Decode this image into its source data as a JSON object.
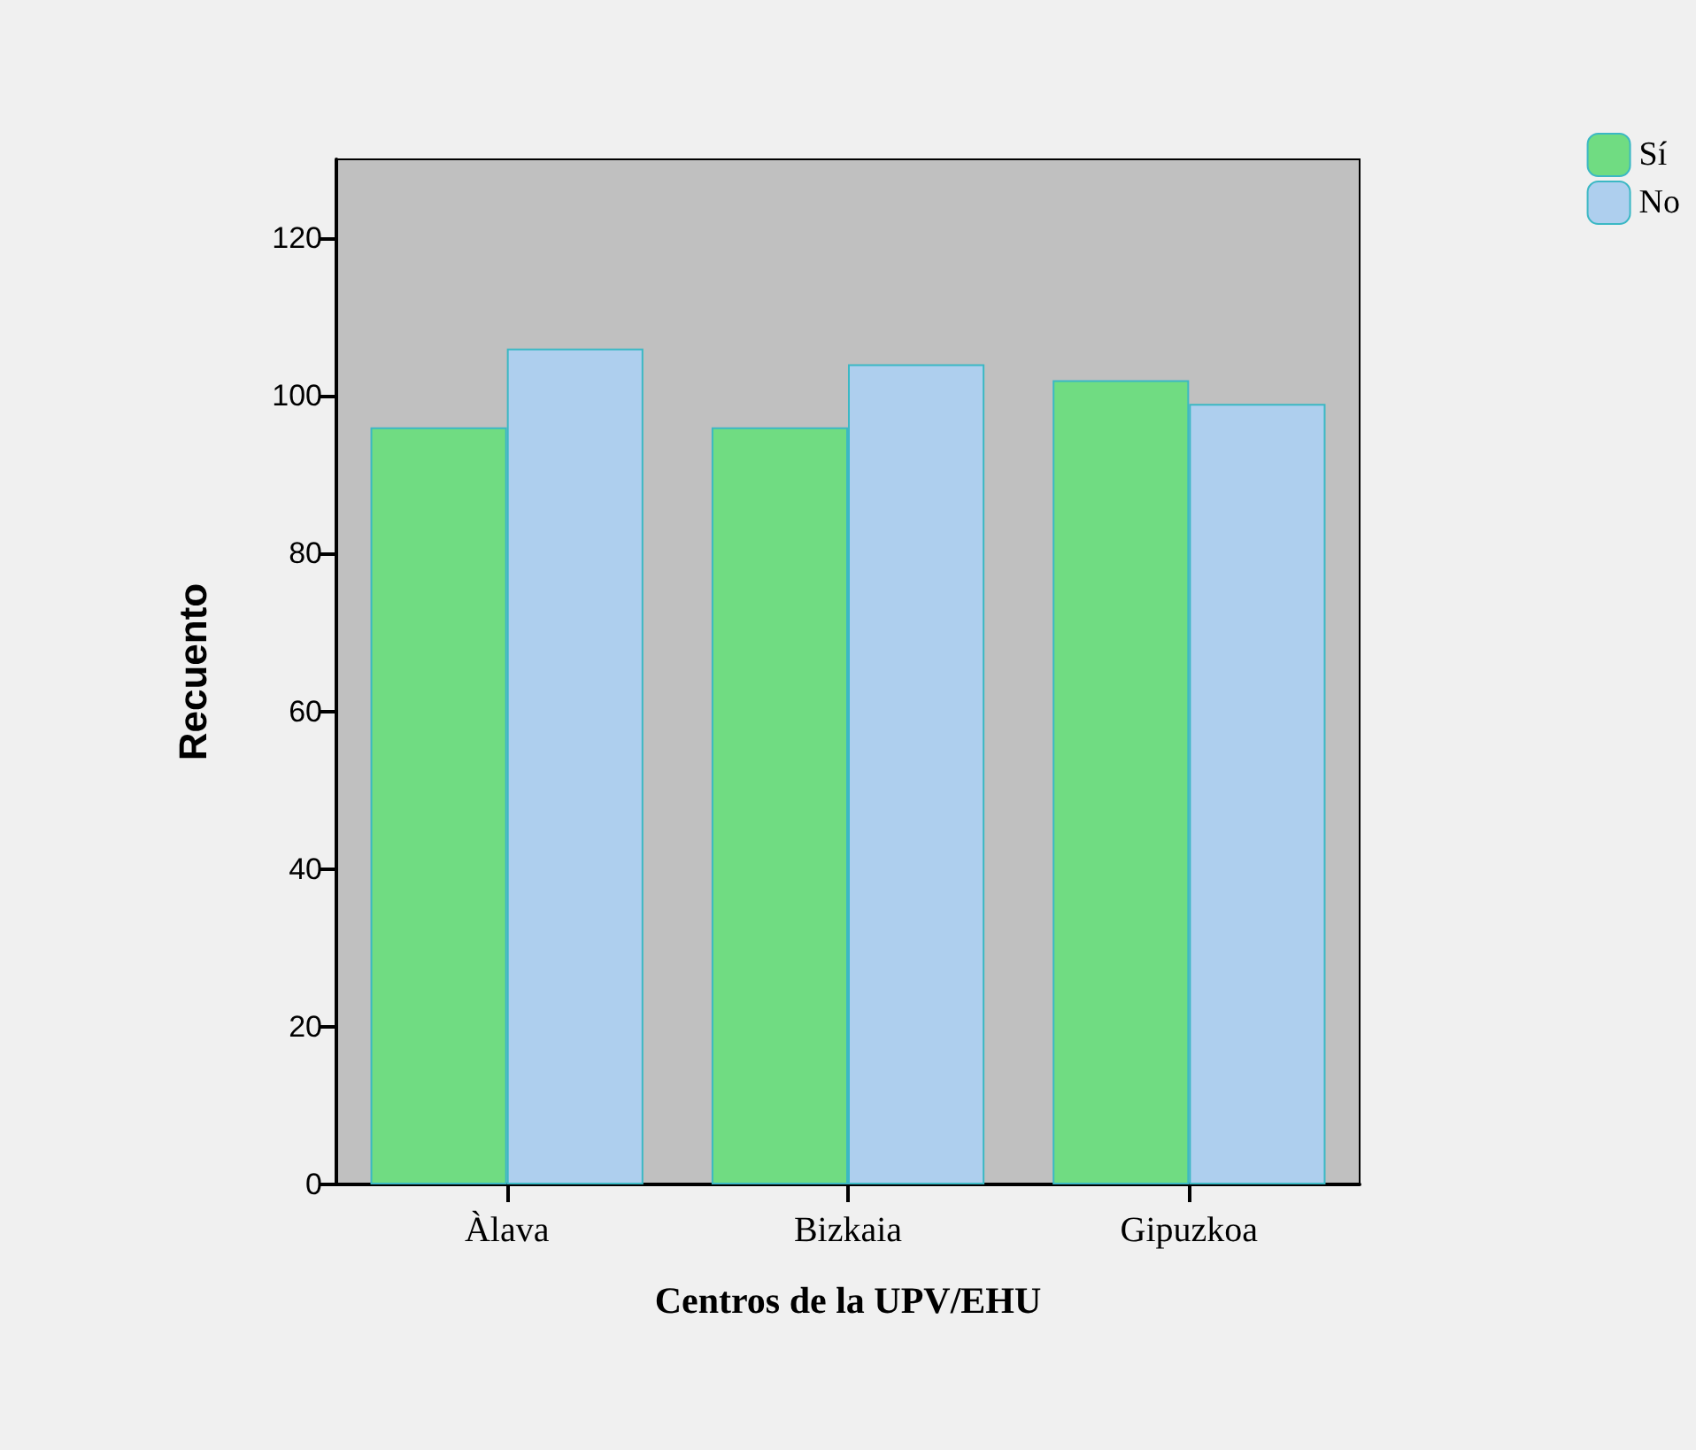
{
  "chart_data": {
    "type": "bar",
    "xlabel": "Centros de la UPV/EHU",
    "ylabel": "Recuento",
    "categories": [
      "Àlava",
      "Bizkaia",
      "Gipuzkoa"
    ],
    "series": [
      {
        "name": "Sí",
        "color": "#70dc82",
        "values": [
          96,
          96,
          102
        ]
      },
      {
        "name": "No",
        "color": "#aecfee",
        "values": [
          106,
          104,
          99
        ]
      }
    ],
    "ylim": [
      0,
      130
    ],
    "yticks": [
      0,
      20,
      40,
      60,
      80,
      100,
      120
    ],
    "grid": false,
    "legend": "top right"
  }
}
